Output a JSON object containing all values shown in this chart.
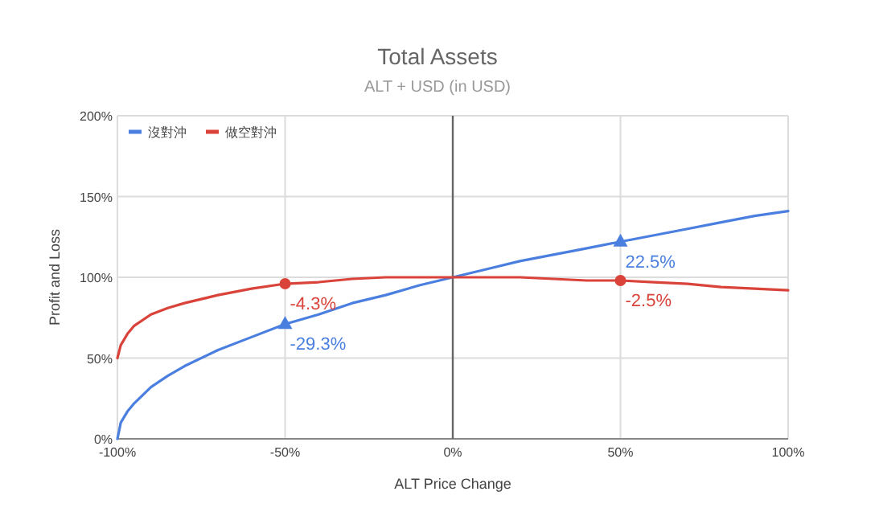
{
  "chart_data": {
    "type": "line",
    "title": "Total Assets",
    "subtitle": "ALT + USD (in USD)",
    "xlabel": "ALT Price Change",
    "ylabel": "Profit and Loss",
    "xlim": [
      -100,
      100
    ],
    "ylim": [
      0,
      200
    ],
    "xticks": [
      {
        "value": -100,
        "label": "-100%"
      },
      {
        "value": -50,
        "label": "-50%"
      },
      {
        "value": 0,
        "label": "0%"
      },
      {
        "value": 50,
        "label": "50%"
      },
      {
        "value": 100,
        "label": "100%"
      }
    ],
    "yticks": [
      {
        "value": 0,
        "label": "0%"
      },
      {
        "value": 50,
        "label": "50%"
      },
      {
        "value": 100,
        "label": "100%"
      },
      {
        "value": 150,
        "label": "150%"
      },
      {
        "value": 200,
        "label": "200%"
      }
    ],
    "grid": true,
    "legend": "top left",
    "line_style": "solid",
    "ref_lines": [
      {
        "axis": "x",
        "value": 0,
        "color": "#666666"
      }
    ],
    "series": [
      {
        "name": "沒對沖",
        "color": "#4a7fe0",
        "x": [
          -100,
          -99,
          -97,
          -95,
          -90,
          -85,
          -80,
          -70,
          -60,
          -50,
          -40,
          -30,
          -20,
          -10,
          0,
          10,
          20,
          30,
          40,
          50,
          60,
          70,
          80,
          90,
          100
        ],
        "values": [
          0,
          10,
          17,
          22,
          32,
          39,
          45,
          55,
          63,
          71,
          77,
          84,
          89,
          95,
          100,
          105,
          110,
          114,
          118,
          122,
          126,
          130,
          134,
          138,
          141
        ]
      },
      {
        "name": "做空對沖",
        "color": "#d9433a",
        "x": [
          -100,
          -99,
          -97,
          -95,
          -90,
          -85,
          -80,
          -70,
          -60,
          -50,
          -40,
          -30,
          -20,
          -10,
          0,
          10,
          20,
          30,
          40,
          50,
          60,
          70,
          80,
          90,
          100
        ],
        "values": [
          50,
          58,
          65,
          70,
          77,
          81,
          84,
          89,
          93,
          96,
          97,
          99,
          100,
          100,
          100,
          100,
          100,
          99,
          98,
          98,
          97,
          96,
          94,
          93,
          92
        ]
      },
      {
        "type": "scatter",
        "color": "#4a7fe0",
        "marker": "triangle",
        "x": [
          -50,
          50
        ],
        "values": [
          71,
          122
        ]
      },
      {
        "type": "scatter",
        "color": "#d9433a",
        "marker": "circle",
        "x": [
          -50,
          50
        ],
        "values": [
          96,
          98
        ]
      }
    ],
    "annotations": [
      "-29.3%",
      "22.5%",
      "-4.3%",
      "-2.5%"
    ]
  }
}
